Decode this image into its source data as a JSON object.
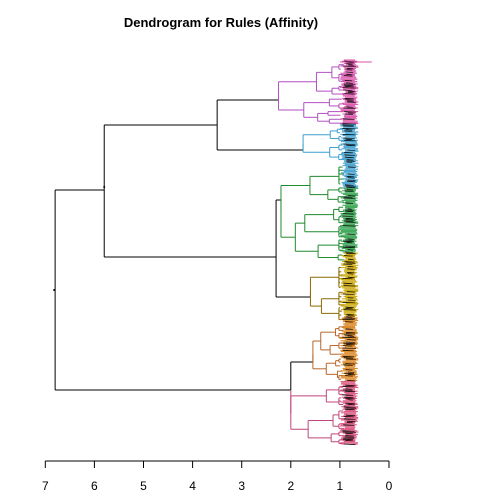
{
  "chart_data": {
    "type": "dendrogram",
    "title": "Dendrogram for Rules (Affinity)",
    "orientation": "horizontal",
    "x_axis": {
      "reversed": true,
      "xlim": [
        7,
        0
      ],
      "ticks": [
        7,
        6,
        5,
        4,
        3,
        2,
        1,
        0
      ],
      "tick_labels": [
        "7",
        "6",
        "5",
        "4",
        "3",
        "2",
        "1",
        "0"
      ]
    },
    "root_height": 6.8,
    "merges": [
      {
        "name": "root",
        "height": 6.8,
        "children": [
          "upper",
          "pink-branch"
        ]
      },
      {
        "name": "upper",
        "height": 5.8,
        "children": [
          "top",
          "middle"
        ]
      },
      {
        "name": "top",
        "height": 3.5,
        "children": [
          "magenta-cluster",
          "blue-cluster"
        ]
      },
      {
        "name": "middle",
        "height": 2.3,
        "children": [
          "green-cluster",
          "olive-cluster"
        ]
      },
      {
        "name": "pink-branch",
        "height": 2.0,
        "children": [
          "orange-cluster",
          "pink-cluster"
        ]
      }
    ],
    "clusters": [
      {
        "name": "magenta-cluster",
        "color": "#b04fc0",
        "height": 2.25
      },
      {
        "name": "blue-cluster",
        "color": "#3d9fcf",
        "height": 1.75
      },
      {
        "name": "green-cluster",
        "color": "#1f8a2f",
        "height": 2.2
      },
      {
        "name": "olive-cluster",
        "color": "#8a6a00",
        "height": 1.6
      },
      {
        "name": "orange-cluster",
        "color": "#b8662a",
        "height": 1.55
      },
      {
        "name": "pink-cluster",
        "color": "#c0457a",
        "height": 2.0
      }
    ],
    "leaf_colors": [
      "#d94fa6",
      "#3d9fcf",
      "#2fa04a",
      "#c9a400",
      "#d9801a",
      "#d94f7a"
    ],
    "leaf_min_height": 0.7,
    "leaf_max_height": 1.0,
    "leaf_outlier_height": 0.35
  }
}
